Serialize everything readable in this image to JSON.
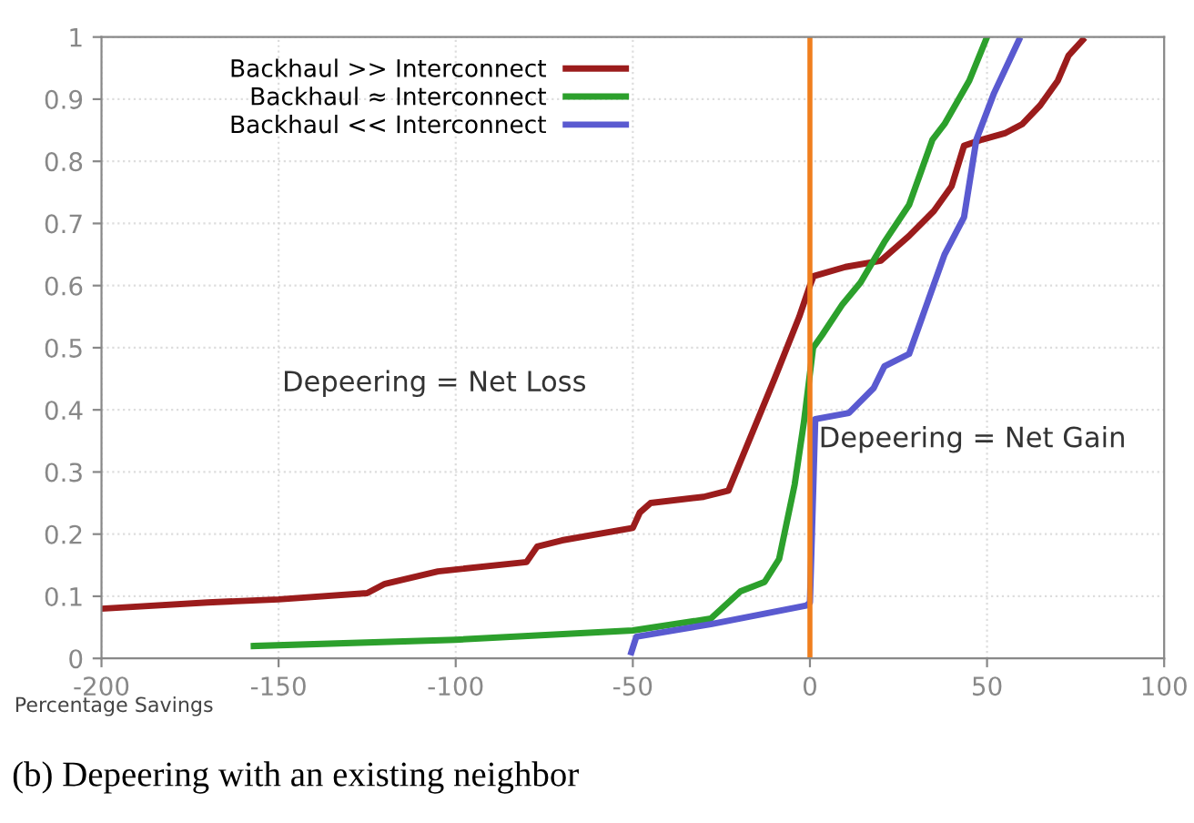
{
  "chart_data": {
    "type": "line",
    "xlabel": "Percentage Savings",
    "annotations": [
      "Depeering = Net Loss",
      "Depeering = Net Gain",
      "(b) Depeering with an existing neighbor"
    ],
    "series": [
      {
        "name": "Backhaul >> Interconnect",
        "color": "#9b1c1c",
        "x": [
          -200,
          -170,
          -150,
          -125,
          -120,
          -105,
          -80,
          -77,
          -70,
          -50,
          -48,
          -45,
          -30,
          -23,
          -10,
          -3,
          0,
          1,
          10,
          20,
          28,
          35,
          40,
          43.5,
          48.6,
          55,
          60,
          65,
          70,
          73,
          77
        ],
        "values": [
          0.08,
          0.09,
          0.095,
          0.105,
          0.12,
          0.14,
          0.155,
          0.18,
          0.19,
          0.21,
          0.235,
          0.25,
          0.26,
          0.27,
          0.45,
          0.55,
          0.6,
          0.615,
          0.63,
          0.64,
          0.68,
          0.72,
          0.76,
          0.825,
          0.835,
          0.845,
          0.86,
          0.89,
          0.93,
          0.97,
          0.995
        ]
      },
      {
        "name": "Backhaul ≈ Interconnect",
        "color": "#2ca02c",
        "x": [
          -157,
          -100,
          -50,
          -28,
          -19.6,
          -12.8,
          -8.7,
          -4.3,
          -1.7,
          0.9,
          3.4,
          9.2,
          14.3,
          21,
          28,
          34.6,
          38,
          45,
          50
        ],
        "values": [
          0.02,
          0.03,
          0.045,
          0.064,
          0.108,
          0.123,
          0.16,
          0.28,
          0.38,
          0.5,
          0.52,
          0.57,
          0.605,
          0.67,
          0.73,
          0.835,
          0.86,
          0.93,
          1.0
        ]
      },
      {
        "name": "Backhaul << Interconnect",
        "color": "#5a5ad0",
        "x": [
          -50.4,
          -49,
          -28,
          -1,
          0,
          1.5,
          11,
          18,
          21,
          28,
          33,
          38,
          43.5,
          47,
          52,
          59
        ],
        "values": [
          0.01,
          0.035,
          0.055,
          0.085,
          0.09,
          0.385,
          0.395,
          0.435,
          0.47,
          0.49,
          0.57,
          0.65,
          0.71,
          0.835,
          0.91,
          0.995
        ]
      }
    ],
    "ref_lines": [
      {
        "axis": "x",
        "value": 0,
        "color": "#f07f1e"
      }
    ],
    "xlim": [
      -200,
      100
    ],
    "xticks": [
      -200,
      -150,
      -100,
      -50,
      0,
      50,
      100
    ],
    "ylim": [
      0,
      1
    ],
    "yticks": [
      0,
      0.1,
      0.2,
      0.3,
      0.4,
      0.5,
      0.6,
      0.7,
      0.8,
      0.9,
      1
    ],
    "grid": true,
    "legend": "top left",
    "marker": "none",
    "line_style": "solid"
  }
}
